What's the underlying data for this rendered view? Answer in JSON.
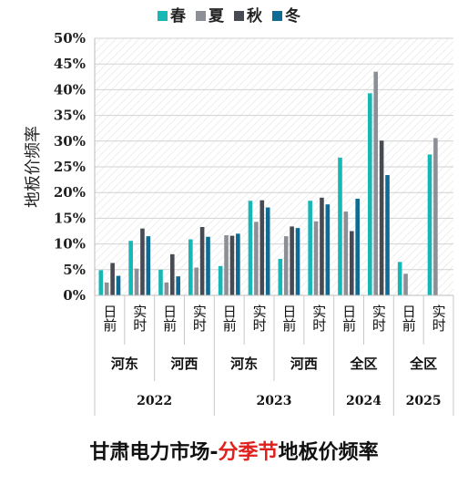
{
  "chart_data": {
    "type": "bar",
    "title": {
      "before": "甘肃电力市场-",
      "highlight": "分季节",
      "after": "地板价频率"
    },
    "ylabel": "地板价频率",
    "ylim": [
      0,
      50
    ],
    "yticks": [
      "0%",
      "5%",
      "10%",
      "15%",
      "20%",
      "25%",
      "30%",
      "35%",
      "40%",
      "45%",
      "50%"
    ],
    "legend_position": "top",
    "grid": true,
    "series": [
      {
        "name": "春",
        "color": "#17b7b5"
      },
      {
        "name": "夏",
        "color": "#8c8f96"
      },
      {
        "name": "秋",
        "color": "#474a52"
      },
      {
        "name": "冬",
        "color": "#0e6b93"
      }
    ],
    "categories": [
      {
        "label": "日前",
        "values": [
          4.9,
          2.5,
          6.3,
          3.8
        ]
      },
      {
        "label": "实时",
        "values": [
          10.6,
          5.2,
          13.0,
          11.5
        ]
      },
      {
        "label": "日前",
        "values": [
          5.0,
          2.5,
          8.0,
          3.7
        ]
      },
      {
        "label": "实时",
        "values": [
          10.9,
          5.4,
          13.3,
          11.4
        ]
      },
      {
        "label": "日前",
        "values": [
          5.7,
          11.7,
          11.6,
          12.0
        ]
      },
      {
        "label": "实时",
        "values": [
          18.4,
          14.3,
          18.5,
          17.1
        ]
      },
      {
        "label": "日前",
        "values": [
          7.1,
          11.5,
          13.4,
          13.1
        ]
      },
      {
        "label": "实时",
        "values": [
          18.4,
          14.4,
          19.0,
          17.7
        ]
      },
      {
        "label": "日前",
        "values": [
          26.8,
          16.3,
          12.5,
          18.8
        ]
      },
      {
        "label": "实时",
        "values": [
          39.3,
          43.5,
          30.1,
          23.4
        ]
      },
      {
        "label": "日前",
        "values": [
          6.5,
          4.2,
          null,
          null
        ]
      },
      {
        "label": "实时",
        "values": [
          27.4,
          30.6,
          null,
          null
        ]
      }
    ],
    "regions": [
      {
        "label": "河东",
        "span": 2
      },
      {
        "label": "河西",
        "span": 2
      },
      {
        "label": "河东",
        "span": 2
      },
      {
        "label": "河西",
        "span": 2
      },
      {
        "label": "全区",
        "span": 2
      },
      {
        "label": "全区",
        "span": 2
      }
    ],
    "years": [
      {
        "label": "2022",
        "span": 4
      },
      {
        "label": "2023",
        "span": 4
      },
      {
        "label": "2024",
        "span": 2
      },
      {
        "label": "2025",
        "span": 2
      }
    ]
  }
}
